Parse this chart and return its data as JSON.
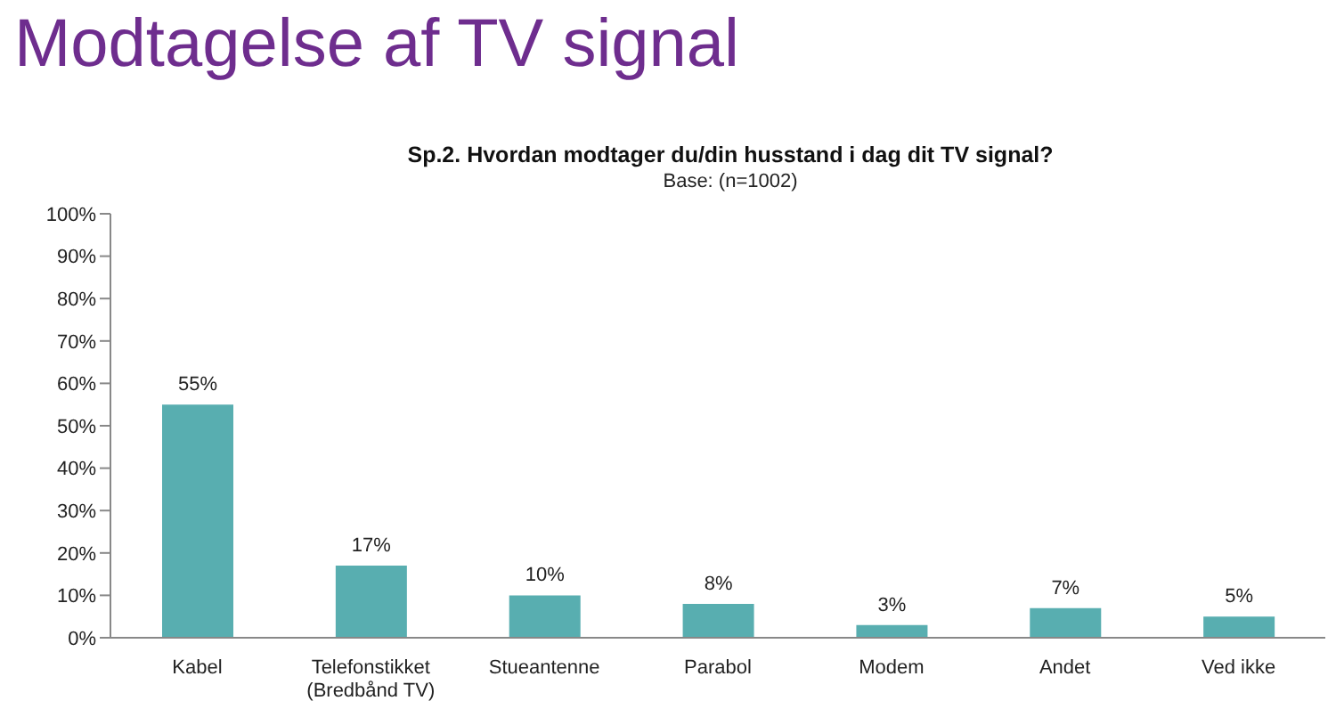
{
  "chart_data": {
    "type": "bar",
    "title": "Modtagelse af TV signal",
    "subtitle": "Sp.2. Hvordan modtager du/din husstand i dag dit TV signal?",
    "annotations": [
      "Base: (n=1002)"
    ],
    "categories": [
      "Kabel",
      "Telefonstikket\n(Bredbånd TV)",
      "Stueantenne",
      "Parabol",
      "Modem",
      "Andet",
      "Ved ikke"
    ],
    "values": [
      55,
      17,
      10,
      8,
      3,
      7,
      5
    ],
    "value_labels": [
      "55%",
      "17%",
      "10%",
      "8%",
      "3%",
      "7%",
      "5%"
    ],
    "color": "#58aeb0",
    "ylim": [
      0,
      100
    ],
    "yticks": [
      {
        "value": 0,
        "label": "0%"
      },
      {
        "value": 10,
        "label": "10%"
      },
      {
        "value": 20,
        "label": "20%"
      },
      {
        "value": 30,
        "label": "30%"
      },
      {
        "value": 40,
        "label": "40%"
      },
      {
        "value": 50,
        "label": "50%"
      },
      {
        "value": 60,
        "label": "60%"
      },
      {
        "value": 70,
        "label": "70%"
      },
      {
        "value": 80,
        "label": "80%"
      },
      {
        "value": 90,
        "label": "90%"
      },
      {
        "value": 100,
        "label": "100%"
      }
    ],
    "grid": false,
    "legend": false
  }
}
